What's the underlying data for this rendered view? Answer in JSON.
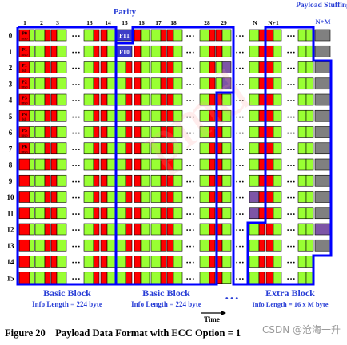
{
  "figure": {
    "top_labels": {
      "parity": "Parity",
      "payload_stuffing": "Payload Stuffing",
      "n_plus_m": "N+M"
    },
    "column_numbers": [
      {
        "id": "c1",
        "label": "1"
      },
      {
        "id": "c2",
        "label": "2"
      },
      {
        "id": "c3",
        "label": "3"
      },
      {
        "id": "c13",
        "label": "13"
      },
      {
        "id": "c14",
        "label": "14"
      },
      {
        "id": "c15",
        "label": "15"
      },
      {
        "id": "c16",
        "label": "16"
      },
      {
        "id": "c17",
        "label": "17"
      },
      {
        "id": "c18",
        "label": "18"
      },
      {
        "id": "c28",
        "label": "28"
      },
      {
        "id": "c29",
        "label": "29"
      },
      {
        "id": "cN",
        "label": "N"
      },
      {
        "id": "cN1",
        "label": "N+1"
      }
    ],
    "row_numbers": [
      "0",
      "1",
      "2",
      "3",
      "4",
      "5",
      "6",
      "7",
      "8",
      "9",
      "10",
      "11",
      "12",
      "13",
      "14",
      "15"
    ],
    "pcell_labels": [
      {
        "row": 0,
        "l1": "P0",
        "l2": "msb"
      },
      {
        "row": 1,
        "l1": "P1",
        "l2": "msb"
      },
      {
        "row": 2,
        "l1": "P1",
        "l2": "lsb"
      },
      {
        "row": 3,
        "l1": "P2",
        "l2": "msb"
      },
      {
        "row": 4,
        "l1": "P3",
        "l2": "msb"
      },
      {
        "row": 5,
        "l1": "P4",
        "l2": "lsb"
      },
      {
        "row": 6,
        "l1": "P5",
        "l2": "msb"
      },
      {
        "row": 7,
        "l1": "P6",
        "l2": "msb"
      }
    ],
    "pt_labels": {
      "pt1": "PT1",
      "pt0": "PT0"
    },
    "ellipsis": "• • •",
    "blocks": [
      {
        "id": "basic1",
        "title": "Basic Block",
        "info": "Info Length = 224 byte"
      },
      {
        "id": "basic2",
        "title": "Basic Block",
        "info": "Info Length = 224 byte"
      },
      {
        "id": "extra",
        "title": "Extra Block",
        "info": "Info Length = 16 x M byte"
      }
    ],
    "bottom_ellipsis": "• • •",
    "time_label": "Time",
    "colors": {
      "red": "#ff0000",
      "green": "#99ff33",
      "purple": "#7d55a6",
      "gray": "#808080",
      "blue_border": "#0000ff",
      "blue_text": "#2a3fd6",
      "grid_line": "#000000"
    }
  },
  "caption": "Figure 20    Payload Data Format with ECC Option = 1",
  "watermark": "CSDN @沧海一升"
}
